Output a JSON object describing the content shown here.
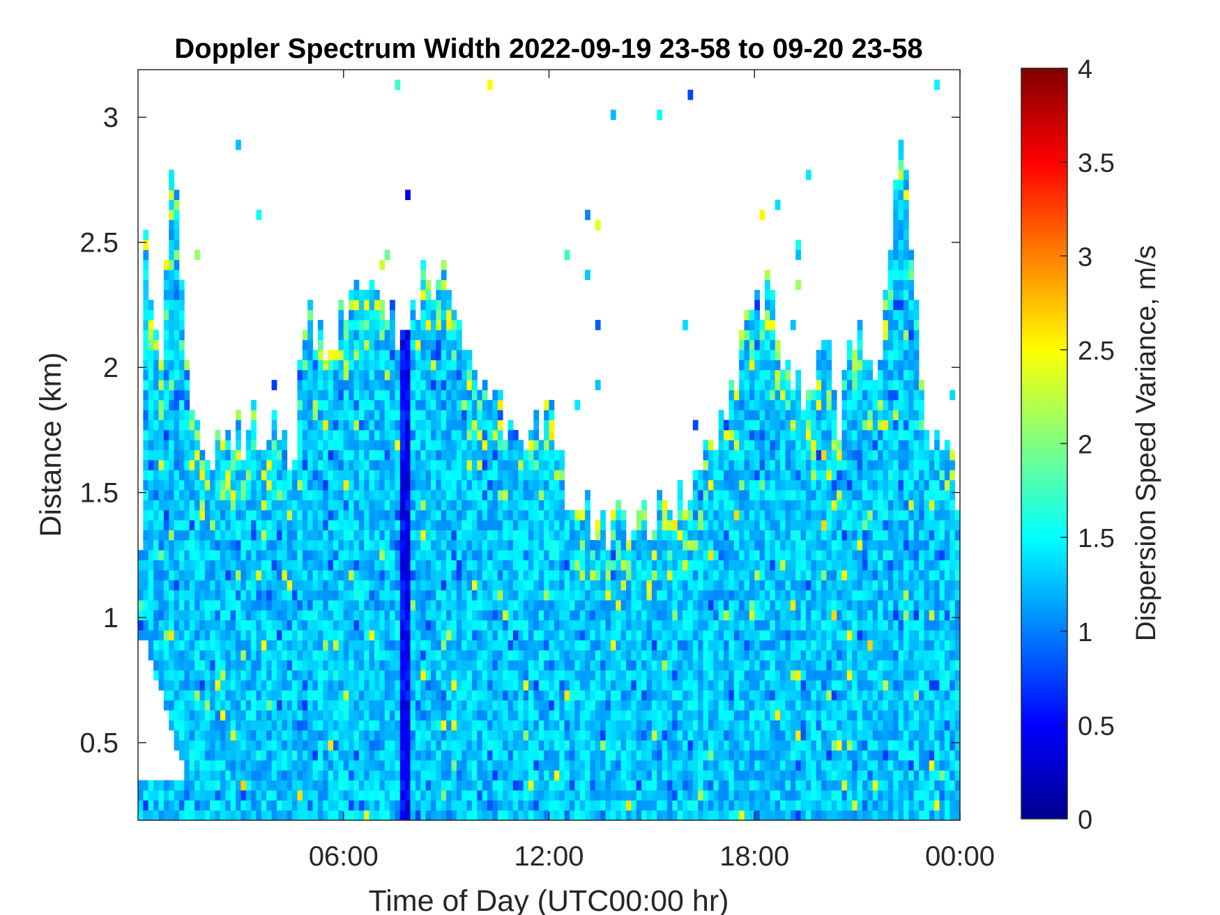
{
  "chart_data": {
    "type": "heatmap",
    "title": "Doppler Spectrum Width 2022-09-19 23-58 to 09-20 23-58",
    "xlabel": "Time of Day (UTC00:00 hr)",
    "ylabel": "Distance (km)",
    "colorbar_label": "Dispersion Speed Variance, m/s",
    "x_unit": "hours",
    "xlim": [
      0,
      24
    ],
    "ylim": [
      0.19,
      3.19
    ],
    "clim": [
      0,
      4
    ],
    "colormap": "jet",
    "x_ticks": [
      {
        "value": 6,
        "label": "06:00"
      },
      {
        "value": 12,
        "label": "12:00"
      },
      {
        "value": 18,
        "label": "18:00"
      },
      {
        "value": 24,
        "label": "00:00"
      }
    ],
    "y_ticks": [
      {
        "value": 0.5,
        "label": "0.5"
      },
      {
        "value": 1,
        "label": "1"
      },
      {
        "value": 1.5,
        "label": "1.5"
      },
      {
        "value": 2,
        "label": "2"
      },
      {
        "value": 2.5,
        "label": "2.5"
      },
      {
        "value": 3,
        "label": "3"
      }
    ],
    "colorbar_ticks": [
      {
        "value": 0,
        "label": "0"
      },
      {
        "value": 0.5,
        "label": "0.5"
      },
      {
        "value": 1,
        "label": "1"
      },
      {
        "value": 1.5,
        "label": "1.5"
      },
      {
        "value": 2,
        "label": "2"
      },
      {
        "value": 2.5,
        "label": "2.5"
      },
      {
        "value": 3,
        "label": "3"
      },
      {
        "value": 3.5,
        "label": "3.5"
      },
      {
        "value": 4,
        "label": "4"
      }
    ],
    "typical_value": 1.3,
    "vertical_streak": {
      "time_hr": 7.8,
      "value": 0.3
    },
    "signal_top_profile": [
      [
        0.0,
        0.35
      ],
      [
        0.2,
        2.5
      ],
      [
        0.6,
        2.0
      ],
      [
        0.8,
        2.4
      ],
      [
        1.0,
        2.8
      ],
      [
        1.2,
        2.5
      ],
      [
        1.5,
        1.9
      ],
      [
        2.0,
        1.65
      ],
      [
        2.5,
        1.65
      ],
      [
        3.0,
        1.75
      ],
      [
        3.5,
        1.75
      ],
      [
        4.0,
        1.7
      ],
      [
        4.5,
        1.65
      ],
      [
        5.0,
        2.2
      ],
      [
        5.5,
        2.1
      ],
      [
        6.0,
        2.2
      ],
      [
        6.5,
        2.4
      ],
      [
        7.0,
        2.3
      ],
      [
        7.5,
        2.2
      ],
      [
        8.0,
        2.2
      ],
      [
        8.5,
        2.4
      ],
      [
        9.0,
        2.3
      ],
      [
        9.5,
        2.1
      ],
      [
        10.0,
        2.0
      ],
      [
        10.5,
        1.9
      ],
      [
        11.0,
        1.7
      ],
      [
        11.5,
        1.7
      ],
      [
        12.0,
        1.9
      ],
      [
        12.5,
        1.45
      ],
      [
        13.0,
        1.38
      ],
      [
        13.5,
        1.35
      ],
      [
        14.0,
        1.4
      ],
      [
        15.0,
        1.42
      ],
      [
        16.0,
        1.45
      ],
      [
        16.5,
        1.6
      ],
      [
        17.0,
        1.85
      ],
      [
        17.5,
        2.0
      ],
      [
        18.0,
        2.2
      ],
      [
        18.5,
        2.3
      ],
      [
        19.0,
        2.0
      ],
      [
        19.5,
        1.9
      ],
      [
        20.0,
        2.2
      ],
      [
        20.5,
        1.8
      ],
      [
        21.0,
        2.2
      ],
      [
        21.5,
        1.9
      ],
      [
        22.0,
        2.6
      ],
      [
        22.3,
        2.9
      ],
      [
        22.6,
        2.4
      ],
      [
        23.0,
        1.7
      ],
      [
        23.5,
        1.65
      ],
      [
        24.0,
        1.5
      ]
    ]
  }
}
